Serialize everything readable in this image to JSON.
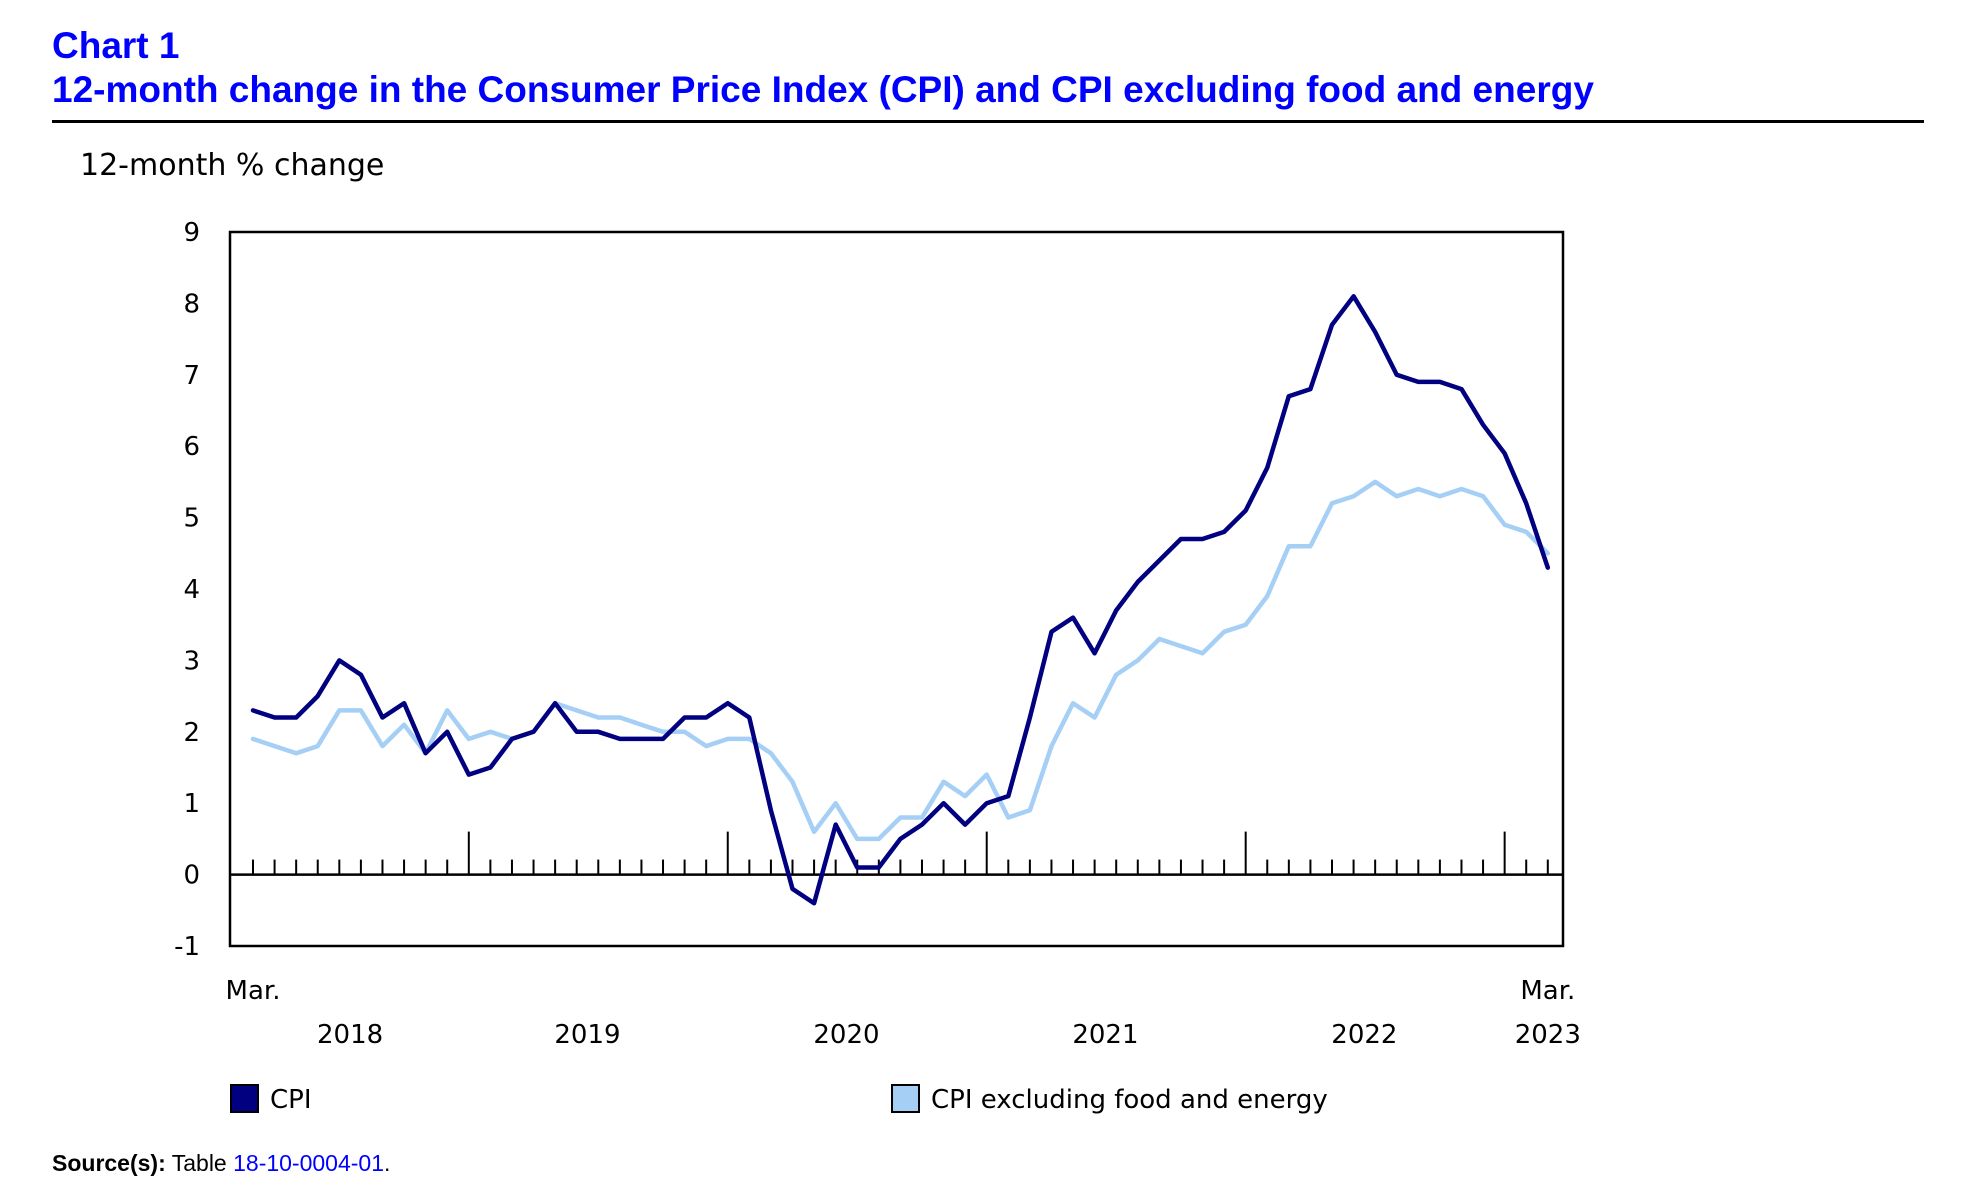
{
  "header": {
    "chart_label": "Chart 1",
    "title": "12-month change in the Consumer Price Index (CPI) and CPI excluding food and energy"
  },
  "colors": {
    "title": "#0000ff",
    "cpi": "#000080",
    "cpi_ex": "#a6cff5",
    "link": "#0000ff"
  },
  "chart_data": {
    "type": "line",
    "ylabel": "12-month % change",
    "ylim": [
      -1,
      9
    ],
    "yticks": [
      "9",
      "8",
      "7",
      "6",
      "5",
      "4",
      "3",
      "2",
      "1",
      "0",
      "-1"
    ],
    "x_start_label": "Mar.",
    "x_end_label": "Mar.",
    "year_labels": [
      "2018",
      "2019",
      "2020",
      "2021",
      "2022",
      "2023"
    ],
    "x_range": [
      "2018-03",
      "2023-03"
    ],
    "grid": false,
    "legend_placement": "bottom",
    "series": [
      {
        "name": "CPI",
        "values": [
          2.3,
          2.2,
          2.2,
          2.5,
          3.0,
          2.8,
          2.2,
          2.4,
          1.7,
          2.0,
          1.4,
          1.5,
          1.9,
          2.0,
          2.4,
          2.0,
          2.0,
          1.9,
          1.9,
          1.9,
          2.2,
          2.2,
          2.4,
          2.2,
          0.9,
          -0.2,
          -0.4,
          0.7,
          0.1,
          0.1,
          0.5,
          0.7,
          1.0,
          0.7,
          1.0,
          1.1,
          2.2,
          3.4,
          3.6,
          3.1,
          3.7,
          4.1,
          4.4,
          4.7,
          4.7,
          4.8,
          5.1,
          5.7,
          6.7,
          6.8,
          7.7,
          8.1,
          7.6,
          7.0,
          6.9,
          6.9,
          6.8,
          6.3,
          5.9,
          5.2,
          4.3
        ]
      },
      {
        "name": "CPI excluding food and energy",
        "values": [
          1.9,
          1.8,
          1.7,
          1.8,
          2.3,
          2.3,
          1.8,
          2.1,
          1.7,
          2.3,
          1.9,
          2.0,
          1.9,
          2.0,
          2.4,
          2.3,
          2.2,
          2.2,
          2.1,
          2.0,
          2.0,
          1.8,
          1.9,
          1.9,
          1.7,
          1.3,
          0.6,
          1.0,
          0.5,
          0.5,
          0.8,
          0.8,
          1.3,
          1.1,
          1.4,
          0.8,
          0.9,
          1.8,
          2.4,
          2.2,
          2.8,
          3.0,
          3.3,
          3.2,
          3.1,
          3.4,
          3.5,
          3.9,
          4.6,
          4.6,
          5.2,
          5.3,
          5.5,
          5.3,
          5.4,
          5.3,
          5.4,
          5.3,
          4.9,
          4.8,
          4.5
        ]
      }
    ]
  },
  "legend": {
    "items": [
      {
        "label": "CPI",
        "color": "#000080"
      },
      {
        "label": "CPI excluding food and energy",
        "color": "#a6cff5"
      }
    ]
  },
  "source": {
    "label": "Source(s):",
    "text": "Table",
    "link": "18-10-0004-01",
    "suffix": "."
  }
}
